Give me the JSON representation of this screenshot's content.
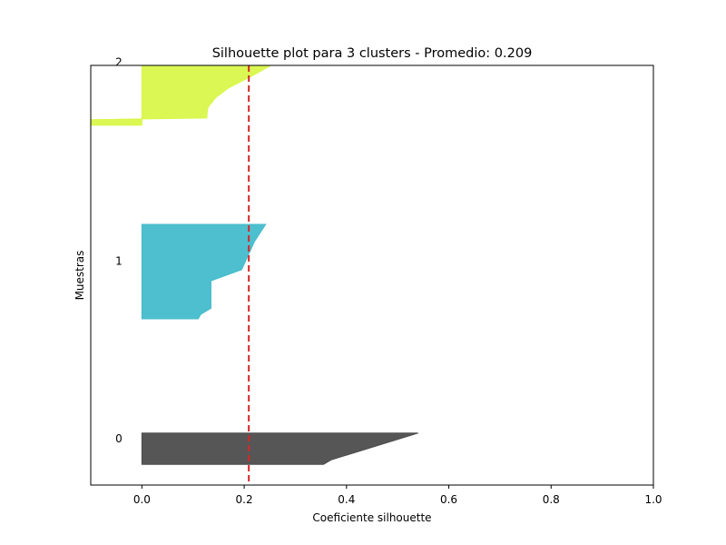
{
  "chart_data": {
    "type": "area",
    "title": "Silhouette plot para 3 clusters - Promedio: 0.209",
    "xlabel": "Coeficiente silhouette",
    "ylabel": "Muestras",
    "xlim": [
      -0.1,
      1.0
    ],
    "ylim": [
      0,
      75
    ],
    "grid": false,
    "x_ticks": [
      0.0,
      0.2,
      0.4,
      0.6,
      0.8,
      1.0
    ],
    "x_tick_labels": [
      "0.0",
      "0.2",
      "0.4",
      "0.6",
      "0.8",
      "1.0"
    ],
    "average_silhouette": 0.209,
    "average_line_color": "#d62728",
    "clusters": [
      {
        "label": "0",
        "color": "#4d4d4d",
        "y_range": [
          3.7,
          9.3
        ],
        "label_y": 8.3,
        "profile": [
          [
            3.7,
            0.355
          ],
          [
            4.5,
            0.37
          ],
          [
            9.3,
            0.54
          ]
        ]
      },
      {
        "label": "1",
        "color": "#45bccb",
        "y_range": [
          29.7,
          46.6
        ],
        "label_y": 40,
        "profile": [
          [
            29.7,
            0.11
          ],
          [
            30.5,
            0.115
          ],
          [
            31.6,
            0.135
          ],
          [
            36.5,
            0.135
          ],
          [
            38.5,
            0.195
          ],
          [
            43.5,
            0.22
          ],
          [
            45.2,
            0.232
          ],
          [
            46.6,
            0.242
          ]
        ]
      },
      {
        "label": "2",
        "color": "#d9f74a",
        "y_range": [
          64.3,
          80.1
        ],
        "label_y": 75.6,
        "profile": [
          [
            64.3,
            -0.1
          ],
          [
            65.3,
            -0.1
          ],
          [
            65.6,
            0.127
          ],
          [
            67.0,
            0.128
          ],
          [
            67.6,
            0.13
          ],
          [
            69.3,
            0.145
          ],
          [
            71.0,
            0.17
          ],
          [
            73.1,
            0.215
          ],
          [
            76.0,
            0.272
          ],
          [
            77.4,
            0.275
          ],
          [
            80.1,
            0.322
          ]
        ]
      }
    ]
  }
}
